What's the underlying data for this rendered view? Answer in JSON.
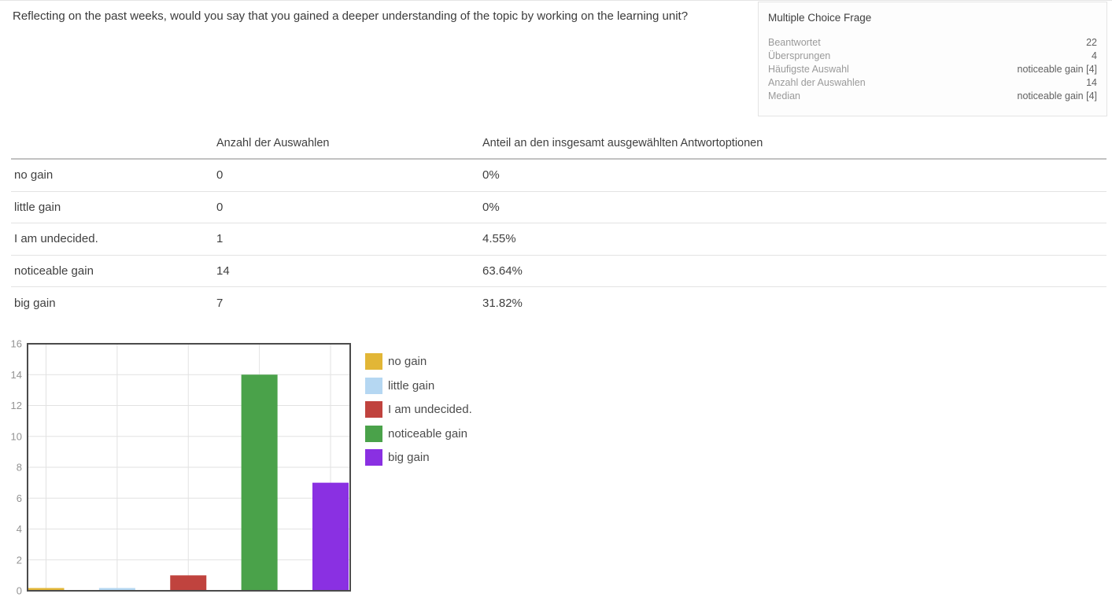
{
  "question": {
    "text": "Reflecting on the past weeks, would you say that you gained a deeper understanding of the topic by working on the learning unit?"
  },
  "stats_panel": {
    "title": "Multiple Choice Frage",
    "rows": [
      {
        "label": "Beantwortet",
        "value": "22"
      },
      {
        "label": "Übersprungen",
        "value": "4"
      },
      {
        "label": "Häufigste Auswahl",
        "value": "noticeable gain [4]"
      },
      {
        "label": "Anzahl der Auswahlen",
        "value": "14"
      },
      {
        "label": "Median",
        "value": "noticeable gain [4]"
      }
    ]
  },
  "table": {
    "headers": {
      "option": "",
      "count": "Anzahl der Auswahlen",
      "share": "Anteil an den insgesamt ausgewählten Antwortoptionen"
    },
    "rows": [
      {
        "option": "no gain",
        "count": "0",
        "share": "0%"
      },
      {
        "option": "little gain",
        "count": "0",
        "share": "0%"
      },
      {
        "option": "I am undecided.",
        "count": "1",
        "share": "4.55%"
      },
      {
        "option": "noticeable gain",
        "count": "14",
        "share": "63.64%"
      },
      {
        "option": "big gain",
        "count": "7",
        "share": "31.82%"
      }
    ]
  },
  "chart_data": {
    "type": "bar",
    "title": "",
    "xlabel": "",
    "ylabel": "",
    "categories": [
      "no gain",
      "little gain",
      "I am undecided.",
      "noticeable gain",
      "big gain"
    ],
    "values": [
      0,
      0,
      1,
      14,
      7
    ],
    "colors": [
      "#E2B636",
      "#B5D7F2",
      "#C0433E",
      "#4AA24A",
      "#8A30E2"
    ],
    "ylim": [
      0,
      16
    ],
    "ytick_step": 2,
    "grid": true,
    "legend_position": "right",
    "frame_color": "#4b4b4b",
    "gridline_color": "#e2e2e2",
    "tick_label_color": "#949494"
  }
}
